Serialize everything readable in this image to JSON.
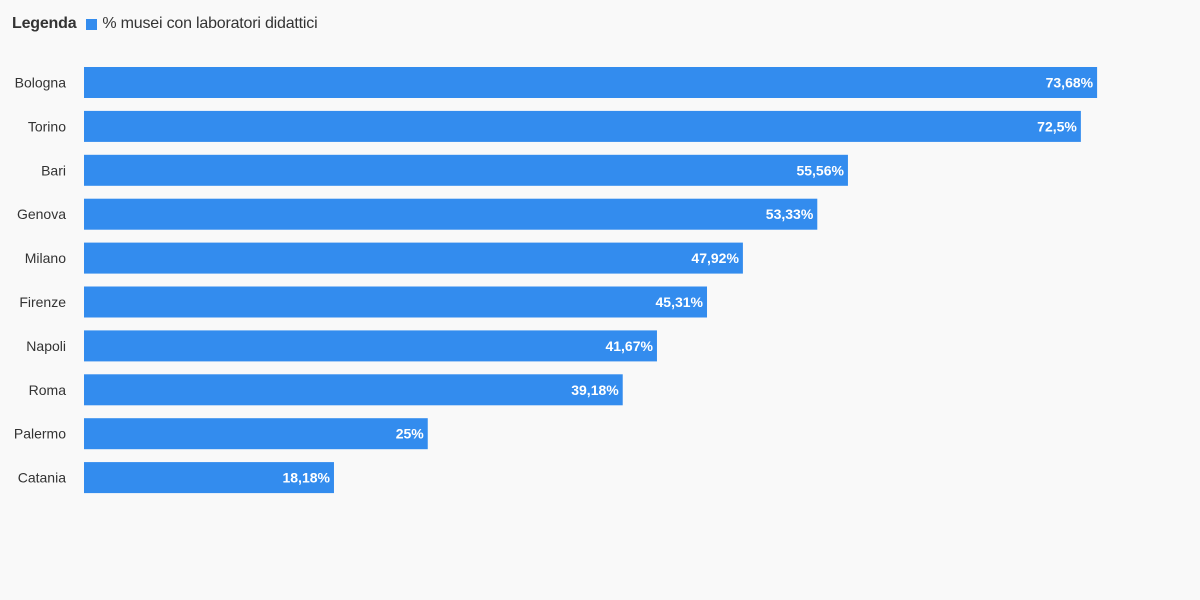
{
  "legend": {
    "title": "Legenda",
    "series_label": "% musei con laboratori didattici"
  },
  "colors": {
    "bar": "#338cee",
    "background": "#f9f9f9",
    "text": "#333333",
    "value_text": "#ffffff"
  },
  "chart_data": {
    "type": "bar",
    "orientation": "horizontal",
    "categories": [
      "Bologna",
      "Torino",
      "Bari",
      "Genova",
      "Milano",
      "Firenze",
      "Napoli",
      "Roma",
      "Palermo",
      "Catania"
    ],
    "series": [
      {
        "name": "% musei con laboratori didattici",
        "values": [
          73.68,
          72.5,
          55.56,
          53.33,
          47.92,
          45.31,
          41.67,
          39.18,
          25,
          18.18
        ],
        "labels": [
          "73,68%",
          "72,5%",
          "55,56%",
          "53,33%",
          "47,92%",
          "45,31%",
          "41,67%",
          "39,18%",
          "25%",
          "18,18%"
        ]
      }
    ],
    "xlim": [
      0,
      100
    ],
    "grid": false,
    "legend_position": "top-left"
  }
}
